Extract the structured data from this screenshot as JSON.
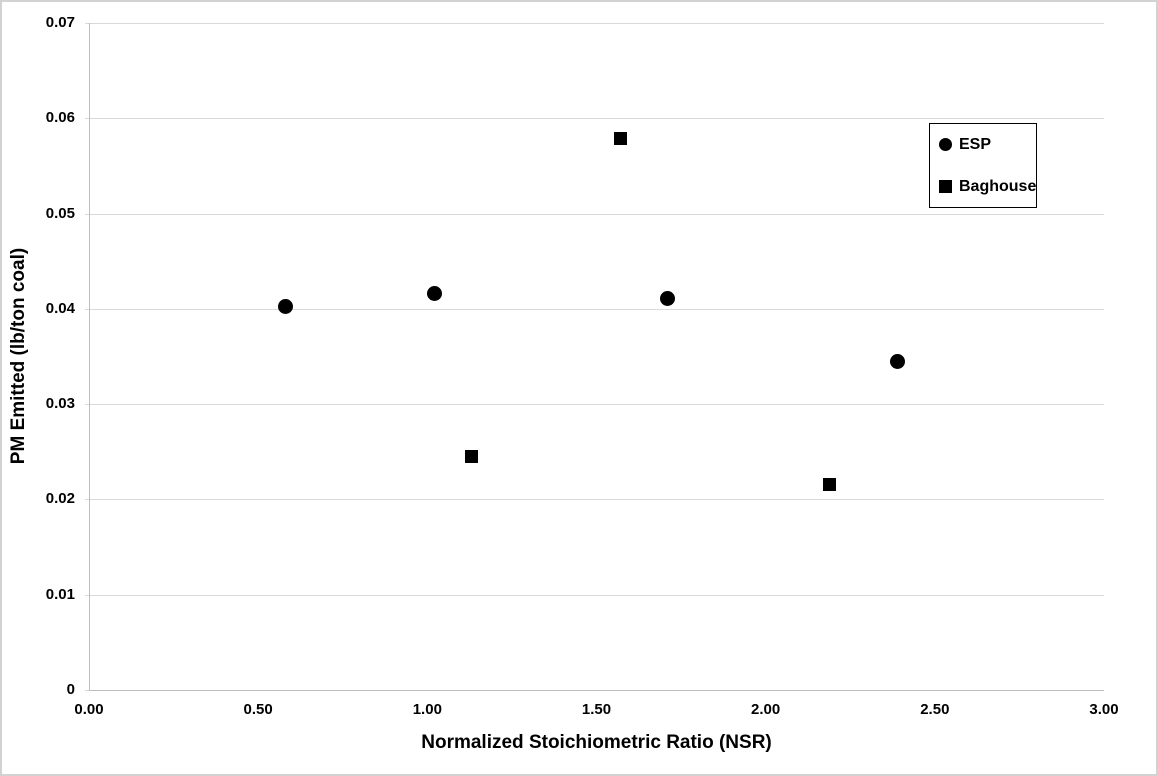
{
  "figure": {
    "background": "#ffffff",
    "outer_border_color": "#d2d2d2"
  },
  "chart_data": {
    "type": "scatter",
    "title": "",
    "xlabel": "Normalized Stoichiometric Ratio (NSR)",
    "ylabel": "PM Emitted (lb/ton coal)",
    "xlim": [
      0,
      3
    ],
    "ylim": [
      0,
      0.07
    ],
    "x_ticks": [
      0,
      0.5,
      1,
      1.5,
      2,
      2.5,
      3
    ],
    "x_tick_labels": [
      "0.00",
      "0.50",
      "1.00",
      "1.50",
      "2.00",
      "2.50",
      "3.00"
    ],
    "y_ticks": [
      0,
      0.01,
      0.02,
      0.03,
      0.04,
      0.05,
      0.06,
      0.07
    ],
    "y_tick_labels": [
      "0",
      "0.01",
      "0.02",
      "0.03",
      "0.04",
      "0.05",
      "0.06",
      "0.07"
    ],
    "grid": "horizontal-only",
    "legend_position": "upper-right-inside",
    "colors": {
      "marker": "#000000",
      "gridline": "#d9d9d9",
      "axis": "#bdbdbd",
      "text": "#000000",
      "legend_border": "#000000"
    },
    "series": [
      {
        "name": "ESP",
        "marker": "circle",
        "points": [
          {
            "x": 0.58,
            "y": 0.0402
          },
          {
            "x": 1.02,
            "y": 0.0416
          },
          {
            "x": 1.71,
            "y": 0.0411
          },
          {
            "x": 2.39,
            "y": 0.0345
          }
        ]
      },
      {
        "name": "Baghouse",
        "marker": "square",
        "points": [
          {
            "x": 1.13,
            "y": 0.0245
          },
          {
            "x": 1.57,
            "y": 0.0579
          },
          {
            "x": 2.19,
            "y": 0.0216
          }
        ]
      }
    ]
  }
}
